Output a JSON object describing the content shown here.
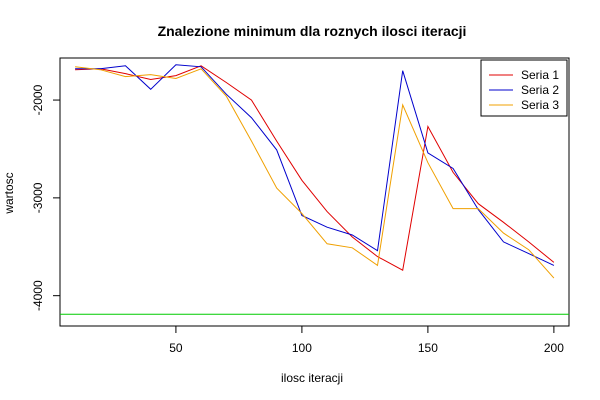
{
  "chart_data": {
    "type": "line",
    "title": "Znalezione minimum dla roznych ilosci iteracji",
    "xlabel": "ilosc iteracji",
    "ylabel": "wartosc",
    "xlim": [
      4,
      206
    ],
    "ylim": [
      -4310,
      -1570
    ],
    "x_ticks": [
      50,
      100,
      150,
      200
    ],
    "y_ticks": [
      -4000,
      -3000,
      -2000
    ],
    "x_tick_labels": [
      "50",
      "100",
      "150",
      "200"
    ],
    "y_tick_labels": [
      "-4000",
      "-3000",
      "-2000"
    ],
    "grid": false,
    "legend_position": "top-right",
    "x": [
      10,
      20,
      30,
      40,
      50,
      60,
      70,
      80,
      90,
      100,
      110,
      120,
      130,
      140,
      150,
      160,
      170,
      180,
      190,
      200
    ],
    "series": [
      {
        "name": "Seria 1",
        "color": "#e00000",
        "values": [
          -1690,
          -1680,
          -1730,
          -1790,
          -1750,
          -1650,
          -1820,
          -2000,
          -2420,
          -2820,
          -3140,
          -3400,
          -3600,
          -3740,
          -2270,
          -2740,
          -3060,
          -3250,
          -3450,
          -3660
        ]
      },
      {
        "name": "Seria 2",
        "color": "#0000cc",
        "values": [
          -1680,
          -1680,
          -1650,
          -1890,
          -1640,
          -1660,
          -1940,
          -2180,
          -2510,
          -3180,
          -3300,
          -3380,
          -3540,
          -1700,
          -2540,
          -2700,
          -3120,
          -3450,
          -3570,
          -3690
        ]
      },
      {
        "name": "Seria 3",
        "color": "#f0a000",
        "values": [
          -1660,
          -1690,
          -1760,
          -1740,
          -1780,
          -1680,
          -1960,
          -2420,
          -2900,
          -3160,
          -3470,
          -3510,
          -3690,
          -2050,
          -2640,
          -3110,
          -3110,
          -3360,
          -3530,
          -3820
        ]
      }
    ],
    "reference_lines": [
      {
        "orientation": "horizontal",
        "y": -4190,
        "color": "#00cc00"
      }
    ]
  }
}
